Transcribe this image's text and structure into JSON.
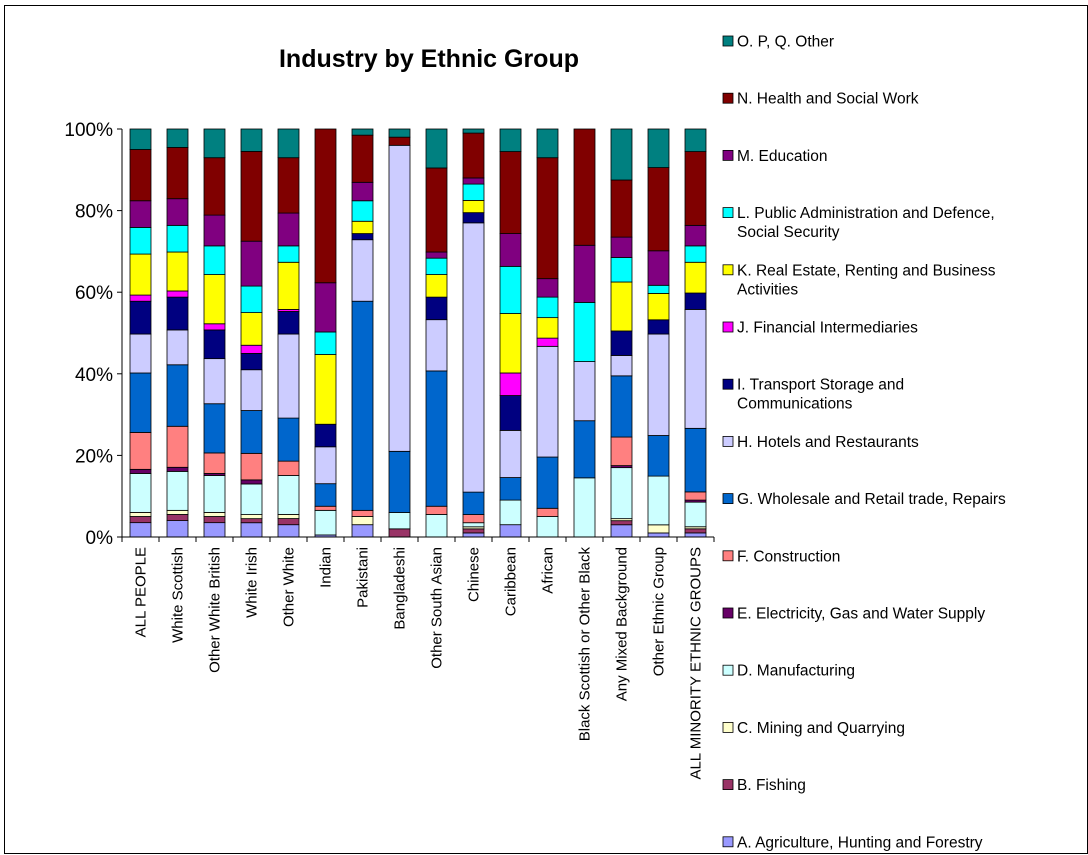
{
  "chart_data": {
    "type": "bar",
    "stacked": true,
    "percent": true,
    "title": "Industry by Ethnic Group",
    "xlabel": "",
    "ylabel": "",
    "ylim": [
      0,
      100
    ],
    "yticks": [
      "0%",
      "20%",
      "40%",
      "60%",
      "80%",
      "100%"
    ],
    "grid": false,
    "legend_position": "right",
    "categories": [
      "ALL PEOPLE",
      "White Scottish",
      "Other White British",
      "White Irish",
      "Other White",
      "Indian",
      "Pakistani",
      "Bangladeshi",
      "Other South Asian",
      "Chinese",
      "Caribbean",
      "African",
      "Black Scottish or Other Black",
      "Any Mixed Background",
      "Other Ethnic Group",
      "ALL MINORITY ETHNIC GROUPS"
    ],
    "series": [
      {
        "name": "A. Agriculture, Hunting and Forestry",
        "color": "#9999FF",
        "values": [
          3.5,
          4,
          3.5,
          3.5,
          3,
          0.5,
          3,
          0,
          0,
          1,
          3,
          0,
          0,
          3,
          1,
          1
        ]
      },
      {
        "name": "B. Fishing",
        "color": "#993366",
        "values": [
          1.5,
          1.5,
          1.5,
          1,
          1.5,
          0,
          0,
          2,
          0,
          1,
          0,
          0,
          0,
          1,
          0,
          1
        ]
      },
      {
        "name": "C. Mining and Quarrying",
        "color": "#FFFFCC",
        "values": [
          1,
          1,
          1,
          1,
          1,
          0,
          2,
          0,
          0,
          0.5,
          0,
          0,
          0,
          0.5,
          2,
          0.5
        ]
      },
      {
        "name": "D. Manufacturing",
        "color": "#CCFFFF",
        "values": [
          9.5,
          9.5,
          9,
          7.5,
          9.5,
          6,
          0,
          4,
          5.5,
          1,
          6,
          5,
          14.5,
          12.5,
          12,
          6
        ]
      },
      {
        "name": "E. Electricity, Gas and Water Supply",
        "color": "#660066",
        "values": [
          1,
          1,
          0.5,
          1,
          0,
          0,
          0,
          0,
          0,
          0,
          0,
          0,
          0,
          0.5,
          0,
          0.5
        ]
      },
      {
        "name": "F. Construction",
        "color": "#FF8080",
        "values": [
          9,
          10,
          5,
          6.5,
          3.5,
          1,
          1.5,
          0,
          2,
          2,
          0,
          2,
          0,
          7,
          0,
          2
        ]
      },
      {
        "name": "G. Wholesale and Retail trade, Repairs",
        "color": "#0066CC",
        "values": [
          14.5,
          15,
          12,
          10.5,
          10.5,
          5.5,
          51,
          15,
          33,
          5.5,
          5.5,
          12.5,
          14,
          15,
          10,
          15.5
        ]
      },
      {
        "name": "H. Hotels and Restaurants",
        "color": "#CCCCFF",
        "values": [
          9.5,
          8.5,
          11,
          10,
          20.5,
          9,
          15,
          75,
          12.5,
          66,
          11.5,
          27,
          14.5,
          5,
          25,
          29
        ]
      },
      {
        "name": "I. Transport Storage and Communications",
        "color": "#000080",
        "values": [
          8,
          8,
          7,
          4,
          5.5,
          5.5,
          1.5,
          0,
          5.5,
          2.5,
          8.5,
          0,
          0,
          6,
          3.5,
          4
        ]
      },
      {
        "name": "J. Financial Intermediaries",
        "color": "#FF00FF",
        "values": [
          1.5,
          1.5,
          1.5,
          2,
          0.5,
          0,
          0,
          0,
          0,
          0,
          5.5,
          2,
          0,
          0,
          0,
          0
        ]
      },
      {
        "name": "K. Real Estate, Renting and Business Activities",
        "color": "#FFFF00",
        "values": [
          10,
          9.5,
          12,
          8,
          11.5,
          17,
          3,
          0,
          5.5,
          3,
          14.5,
          5,
          0,
          12,
          6.5,
          7.5
        ]
      },
      {
        "name": "L. Public Administration and Defence, Social Security",
        "color": "#00FFFF",
        "values": [
          6.5,
          6.5,
          7,
          6.5,
          4,
          5.5,
          5,
          0,
          4,
          4,
          11.5,
          5,
          14.5,
          6,
          2,
          4
        ]
      },
      {
        "name": "M. Education",
        "color": "#800080",
        "values": [
          6.5,
          6.5,
          7.5,
          11,
          8,
          12,
          4.5,
          0,
          1.5,
          1.5,
          8,
          4.5,
          14,
          5,
          8.5,
          5
        ]
      },
      {
        "name": "N. Health and Social Work",
        "color": "#800000",
        "values": [
          12.5,
          12.5,
          14,
          22,
          13.5,
          37.5,
          11.5,
          2,
          20.5,
          11,
          20,
          29.5,
          28.5,
          14,
          20.5,
          18
        ]
      },
      {
        "name": "O. P, Q. Other",
        "color": "#008080",
        "values": [
          5,
          4.5,
          7,
          5.5,
          7,
          0,
          1.5,
          2,
          9.5,
          1,
          5.5,
          7,
          0,
          12.5,
          9.5,
          5.5
        ]
      }
    ]
  }
}
